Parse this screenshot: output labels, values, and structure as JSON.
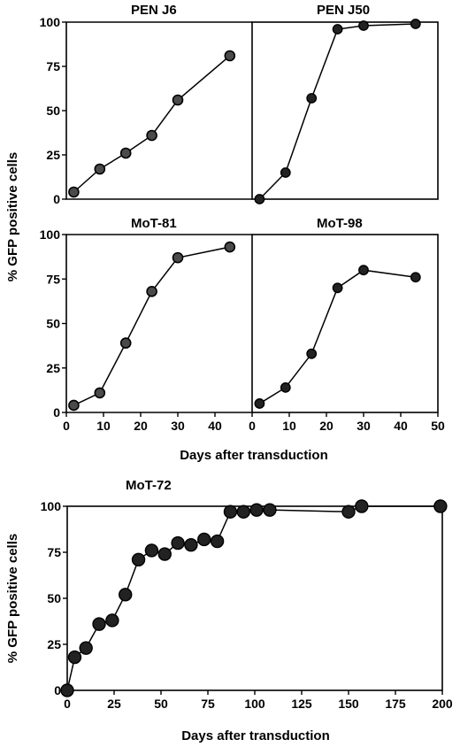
{
  "figure": {
    "ylabel_top": "% GFP positive cells",
    "xlabel_top": "Days after transduction",
    "ylabel_bottom": "% GFP positive cells",
    "xlabel_bottom": "Days after transduction"
  },
  "chart_data": [
    {
      "type": "line",
      "title": "PEN J6",
      "xlim": [
        0,
        50
      ],
      "ylim": [
        0,
        100
      ],
      "yticks": [
        0,
        25,
        50,
        75,
        100
      ],
      "series": [
        {
          "x": [
            2,
            9,
            16,
            23,
            30,
            44
          ],
          "y": [
            4,
            17,
            26,
            36,
            56,
            81
          ]
        }
      ]
    },
    {
      "type": "line",
      "title": "PEN J50",
      "xlim": [
        0,
        50
      ],
      "ylim": [
        0,
        100
      ],
      "series": [
        {
          "x": [
            2,
            9,
            16,
            23,
            30,
            44
          ],
          "y": [
            0,
            15,
            57,
            96,
            98,
            99
          ]
        }
      ]
    },
    {
      "type": "line",
      "title": "MoT-81",
      "xlim": [
        0,
        50
      ],
      "ylim": [
        0,
        100
      ],
      "xticks": [
        0,
        10,
        20,
        30,
        40
      ],
      "yticks": [
        0,
        25,
        50,
        75,
        100
      ],
      "series": [
        {
          "x": [
            2,
            9,
            16,
            23,
            30,
            44
          ],
          "y": [
            4,
            11,
            39,
            68,
            87,
            93
          ]
        }
      ]
    },
    {
      "type": "line",
      "title": "MoT-98",
      "xlim": [
        0,
        50
      ],
      "ylim": [
        0,
        100
      ],
      "xticks": [
        0,
        10,
        20,
        30,
        40,
        50
      ],
      "series": [
        {
          "x": [
            2,
            9,
            16,
            23,
            30,
            44
          ],
          "y": [
            5,
            14,
            33,
            70,
            80,
            76
          ]
        }
      ]
    },
    {
      "type": "line",
      "title": "MoT-72",
      "xlim": [
        0,
        200
      ],
      "ylim": [
        0,
        100
      ],
      "xticks": [
        0,
        25,
        50,
        75,
        100,
        125,
        150,
        175,
        200
      ],
      "yticks": [
        0,
        25,
        50,
        75,
        100
      ],
      "series": [
        {
          "x": [
            0,
            4,
            10,
            17,
            24,
            31,
            38,
            45,
            52,
            59,
            66,
            73,
            80,
            87,
            94,
            101,
            108,
            150,
            157,
            199
          ],
          "y": [
            0,
            18,
            23,
            36,
            38,
            52,
            71,
            76,
            74,
            80,
            79,
            82,
            81,
            97,
            97,
            98,
            98,
            97,
            100,
            100
          ]
        }
      ]
    }
  ]
}
